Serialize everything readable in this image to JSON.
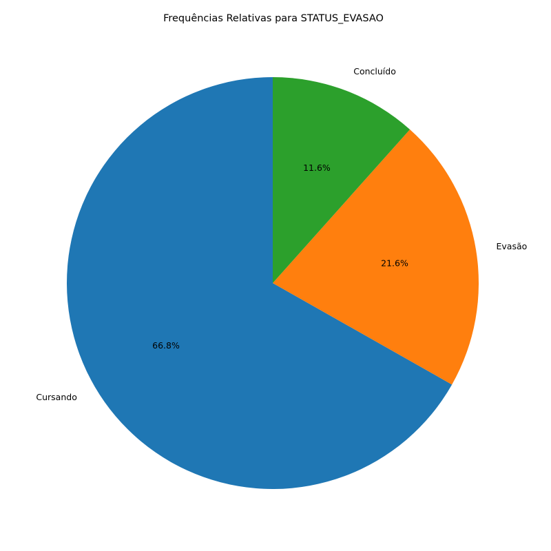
{
  "chart_data": {
    "type": "pie",
    "title": "Frequências Relativas para STATUS_EVASAO",
    "start_angle_deg": 90,
    "direction": "counterclockwise",
    "slices": [
      {
        "label": "Cursando",
        "value": 66.8,
        "pct_label": "66.8%",
        "color": "#1f77b4"
      },
      {
        "label": "Evasão",
        "value": 21.6,
        "pct_label": "21.6%",
        "color": "#ff7f0e"
      },
      {
        "label": "Concluído",
        "value": 11.6,
        "pct_label": "11.6%",
        "color": "#2ca02c"
      }
    ]
  }
}
